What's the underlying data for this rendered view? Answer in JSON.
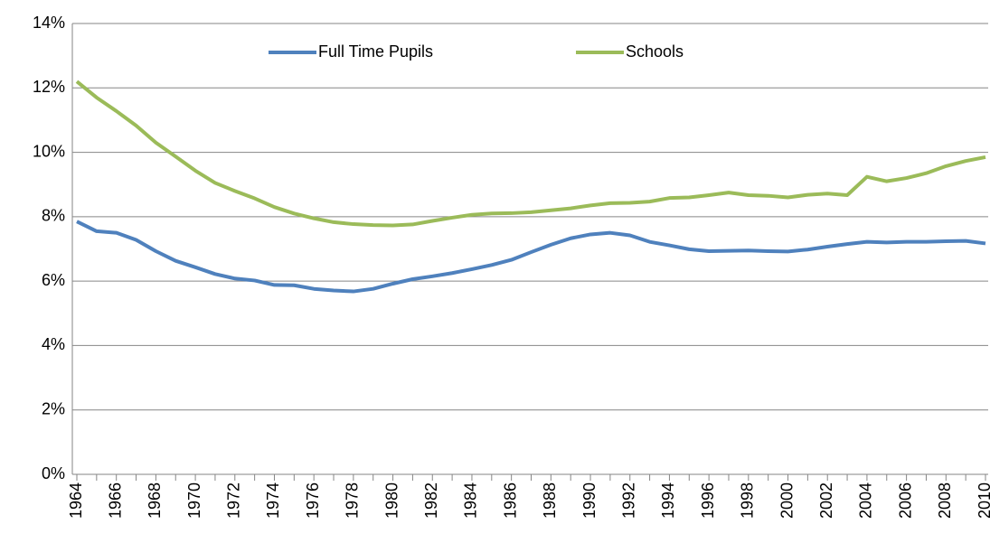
{
  "chart_data": {
    "type": "line",
    "categories": [
      "1964",
      null,
      "1966",
      null,
      "1968",
      null,
      "1970",
      null,
      "1972",
      null,
      "1974",
      null,
      "1976",
      null,
      "1978",
      null,
      "1980",
      null,
      "1982",
      null,
      "1984",
      null,
      "1986",
      null,
      "1988",
      null,
      "1990",
      null,
      "1992",
      null,
      "1994",
      null,
      "1996",
      null,
      "1998",
      null,
      "2000",
      null,
      "2002",
      null,
      "2004",
      null,
      "2006",
      null,
      "2008",
      null,
      "2010"
    ],
    "series": [
      {
        "name": "Full Time Pupils",
        "color": "#4f81bd",
        "values": [
          7.85,
          7.55,
          7.5,
          7.28,
          6.93,
          6.63,
          6.43,
          6.22,
          6.08,
          6.02,
          5.88,
          5.87,
          5.76,
          5.71,
          5.68,
          5.76,
          5.92,
          6.06,
          6.15,
          6.25,
          6.37,
          6.5,
          6.66,
          6.9,
          7.13,
          7.33,
          7.45,
          7.5,
          7.42,
          7.22,
          7.11,
          6.99,
          6.93,
          6.94,
          6.95,
          6.93,
          6.92,
          6.98,
          7.07,
          7.15,
          7.22,
          7.2,
          7.22,
          7.22,
          7.24,
          7.25,
          7.17
        ]
      },
      {
        "name": "Schools",
        "color": "#9bbb59",
        "values": [
          12.2,
          11.7,
          11.28,
          10.83,
          10.3,
          9.87,
          9.43,
          9.05,
          8.8,
          8.57,
          8.3,
          8.1,
          7.95,
          7.83,
          7.77,
          7.74,
          7.73,
          7.76,
          7.87,
          7.97,
          8.06,
          8.1,
          8.11,
          8.14,
          8.2,
          8.26,
          8.35,
          8.42,
          8.43,
          8.47,
          8.58,
          8.6,
          8.67,
          8.75,
          8.67,
          8.65,
          8.6,
          8.68,
          8.72,
          8.67,
          9.24,
          9.1,
          9.2,
          9.35,
          9.57,
          9.73,
          9.85
        ]
      }
    ],
    "ylim": [
      0,
      14
    ],
    "yticks": [
      {
        "value": 0,
        "label": "0%"
      },
      {
        "value": 2,
        "label": "2%"
      },
      {
        "value": 4,
        "label": "4%"
      },
      {
        "value": 6,
        "label": "6%"
      },
      {
        "value": 8,
        "label": "8%"
      },
      {
        "value": 10,
        "label": "10%"
      },
      {
        "value": 12,
        "label": "12%"
      },
      {
        "value": 14,
        "label": "14%"
      }
    ],
    "grid": true,
    "legend": "top"
  }
}
